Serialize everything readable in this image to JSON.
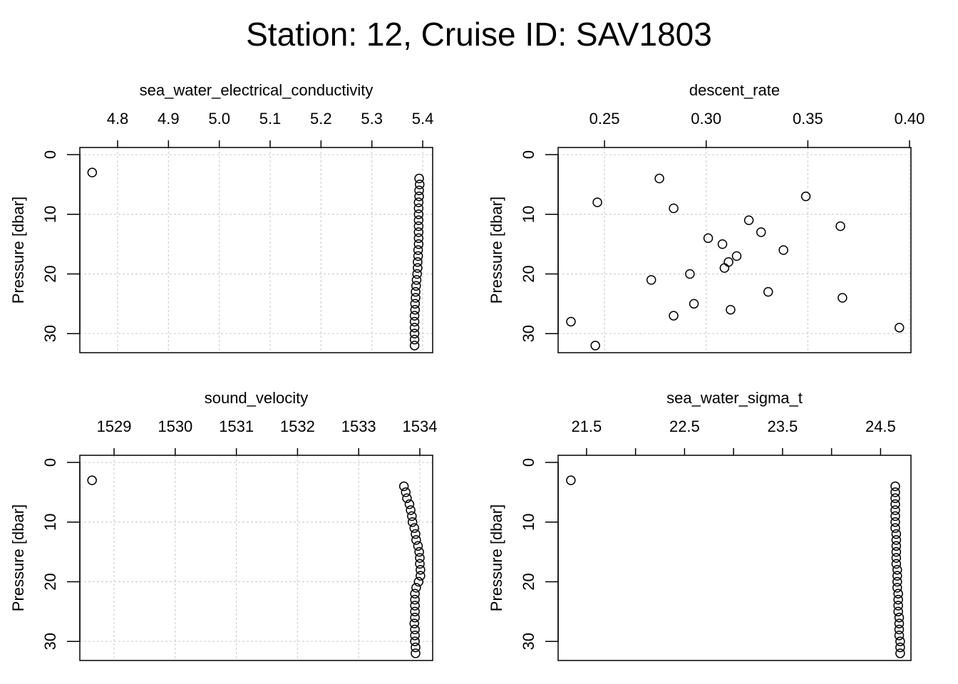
{
  "title": "Station: 12, Cruise ID: SAV1803",
  "chart_data": [
    {
      "type": "scatter",
      "title": "sea_water_electrical_conductivity",
      "ylabel": "Pressure [dbar]",
      "xlim": [
        4.7257,
        5.4196
      ],
      "ylim": [
        33.2,
        -1.2
      ],
      "xticks": [
        4.8,
        4.9,
        {
          "value": 5,
          "label": "5.0"
        },
        5.1,
        5.2,
        5.3,
        5.4
      ],
      "yticks": [
        0,
        10,
        20,
        30
      ],
      "grid": true,
      "color": "#000000",
      "x": [
        4.75,
        5.393,
        5.394,
        5.393,
        5.393,
        5.392,
        5.392,
        5.392,
        5.392,
        5.392,
        5.392,
        5.392,
        5.392,
        5.391,
        5.391,
        5.39,
        5.39,
        5.389,
        5.388,
        5.387,
        5.386,
        5.386,
        5.385,
        5.385,
        5.384,
        5.384,
        5.384,
        5.384,
        5.384,
        5.384
      ],
      "y": [
        3,
        4,
        5,
        6,
        7,
        8,
        9,
        10,
        11,
        12,
        13,
        14,
        15,
        16,
        17,
        18,
        19,
        20,
        21,
        22,
        23,
        24,
        25,
        26,
        27,
        28,
        29,
        30,
        31,
        32
      ]
    },
    {
      "type": "scatter",
      "title": "descent_rate",
      "ylabel": "Pressure [dbar]",
      "xlim": [
        0.2272,
        0.4007
      ],
      "ylim": [
        33.2,
        -1.2
      ],
      "xticks": [
        0.25,
        {
          "value": 0.3,
          "label": "0.30"
        },
        0.35,
        {
          "value": 0.4,
          "label": "0.40"
        }
      ],
      "yticks": [
        0,
        10,
        20,
        30
      ],
      "grid": true,
      "color": "#000000",
      "x": [
        0.277,
        0.349,
        0.2465,
        0.284,
        0.321,
        0.366,
        0.327,
        0.301,
        0.308,
        0.338,
        0.315,
        0.311,
        0.309,
        0.292,
        0.273,
        0.3305,
        0.367,
        0.294,
        0.312,
        0.284,
        0.2335,
        0.395,
        0.2455
      ],
      "y": [
        4,
        7,
        8,
        9,
        11,
        12,
        13,
        14,
        15,
        16,
        17,
        18,
        19,
        20,
        21,
        23,
        24,
        25,
        26,
        27,
        28,
        29,
        32
      ]
    },
    {
      "type": "scatter",
      "title": "sound_velocity",
      "ylabel": "Pressure [dbar]",
      "xlim": [
        1528.44,
        1534.21
      ],
      "ylim": [
        33.2,
        -1.2
      ],
      "xticks": [
        1529,
        1530,
        1531,
        1532,
        1533,
        1534
      ],
      "yticks": [
        0,
        10,
        20,
        30
      ],
      "grid": true,
      "color": "#000000",
      "x": [
        1528.64,
        1533.74,
        1533.77,
        1533.79,
        1533.83,
        1533.85,
        1533.87,
        1533.88,
        1533.91,
        1533.93,
        1533.94,
        1533.97,
        1533.99,
        1534.0,
        1534.0,
        1534.01,
        1534.01,
        1533.98,
        1533.94,
        1533.92,
        1533.92,
        1533.92,
        1533.92,
        1533.92,
        1533.91,
        1533.92,
        1533.92,
        1533.92,
        1533.93,
        1533.93
      ],
      "y": [
        3,
        4,
        5,
        6,
        7,
        8,
        9,
        10,
        11,
        12,
        13,
        14,
        15,
        16,
        17,
        18,
        19,
        20,
        21,
        22,
        23,
        24,
        25,
        26,
        27,
        28,
        29,
        30,
        31,
        32
      ]
    },
    {
      "type": "scatter",
      "title": "sea_water_sigma_t",
      "ylabel": "Pressure [dbar]",
      "xlim": [
        21.21,
        24.81
      ],
      "ylim": [
        33.2,
        -1.2
      ],
      "xticks": [
        21.5,
        {
          "value": 22,
          "label": null
        },
        22.5,
        {
          "value": 23,
          "label": null
        },
        23.5,
        {
          "value": 24,
          "label": null
        },
        24.5
      ],
      "yticks": [
        0,
        10,
        20,
        30
      ],
      "grid": false,
      "color": "#000000",
      "x": [
        21.34,
        24.65,
        24.65,
        24.65,
        24.65,
        24.65,
        24.65,
        24.65,
        24.65,
        24.66,
        24.66,
        24.66,
        24.66,
        24.66,
        24.66,
        24.67,
        24.67,
        24.67,
        24.67,
        24.68,
        24.68,
        24.68,
        24.68,
        24.69,
        24.69,
        24.69,
        24.69,
        24.7,
        24.7,
        24.7
      ],
      "y": [
        3,
        4,
        5,
        6,
        7,
        8,
        9,
        10,
        11,
        12,
        13,
        14,
        15,
        16,
        17,
        18,
        19,
        20,
        21,
        22,
        23,
        24,
        25,
        26,
        27,
        28,
        29,
        30,
        31,
        32
      ]
    }
  ]
}
